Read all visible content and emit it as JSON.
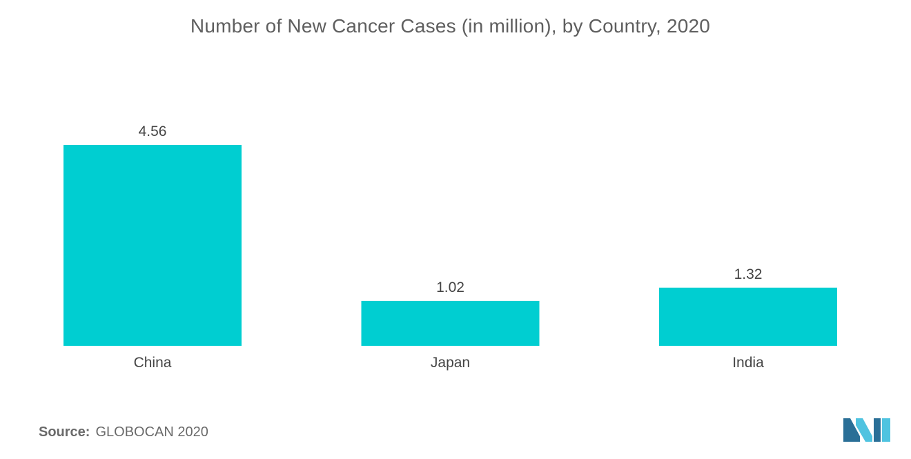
{
  "title": "Number of New Cancer Cases (in million), by Country, 2020",
  "source": {
    "label": "Source:",
    "value": "GLOBOCAN 2020"
  },
  "colors": {
    "bar": "#00ced1",
    "text": "#555555",
    "logo_dark": "#2a6f97",
    "logo_light": "#4fc3e0"
  },
  "logo": {
    "icon": "mordor-intelligence-logo-icon"
  },
  "chart_data": {
    "type": "bar",
    "title": "Number of New Cancer Cases (in million), by Country, 2020",
    "categories": [
      "China",
      "Japan",
      "India"
    ],
    "values": [
      4.56,
      1.02,
      1.32
    ],
    "data_labels": [
      "4.56",
      "1.02",
      "1.32"
    ],
    "xlabel": "",
    "ylabel": "",
    "ylim": [
      0,
      4.56
    ],
    "grid": false,
    "legend": "none"
  }
}
